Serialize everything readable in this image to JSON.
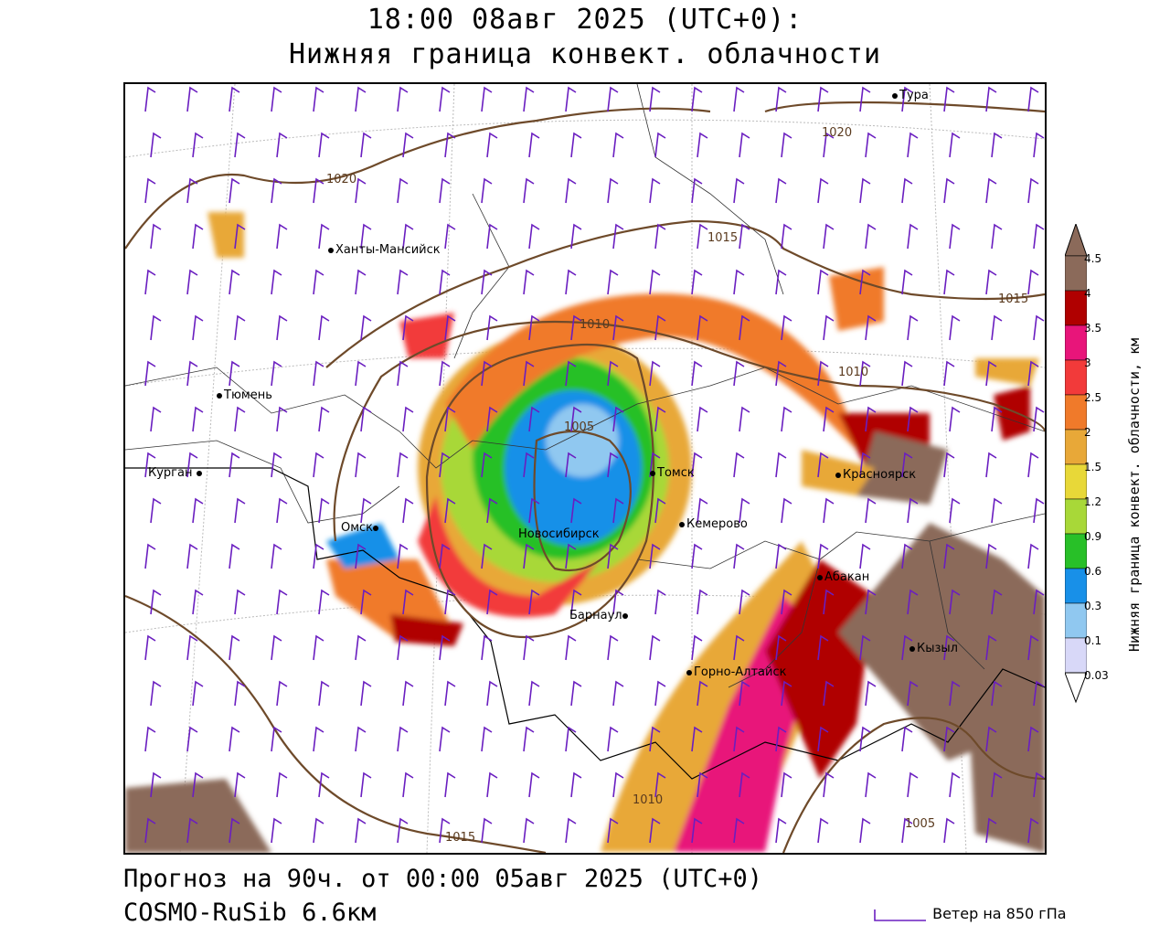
{
  "header": {
    "title_line1": "18:00 08авг 2025 (UTC+0):",
    "title_line2": "Нижняя граница конвект. облачности"
  },
  "footer": {
    "forecast": "Прогноз на 90ч. от 00:00 05авг 2025 (UTC+0)",
    "model": "COSMO-RuSib 6.6км",
    "wind_legend": "Ветер на 850 гПа"
  },
  "colorbar": {
    "title": "Нижняя граница конвект. облачности, км",
    "labels": [
      "4.5",
      "4",
      "3.5",
      "3",
      "2.5",
      "2",
      "1.5",
      "1.2",
      "0.9",
      "0.6",
      "0.3",
      "0.1",
      "0.03"
    ],
    "colors": [
      "#8b6a5a",
      "#b00000",
      "#e8157a",
      "#f23a3a",
      "#f07a2a",
      "#e8a838",
      "#e8d838",
      "#a8d838",
      "#28c028",
      "#1890e8",
      "#90c8f0",
      "#d8d8f8",
      "#ffffff"
    ]
  },
  "cities": [
    {
      "name": "Тура"
    },
    {
      "name": "Ханты-Мансийск"
    },
    {
      "name": "Тюмень"
    },
    {
      "name": "Курган"
    },
    {
      "name": "Омск"
    },
    {
      "name": "Новосибирск"
    },
    {
      "name": "Томск"
    },
    {
      "name": "Кемерово"
    },
    {
      "name": "Красноярск"
    },
    {
      "name": "Абакан"
    },
    {
      "name": "Барнаул"
    },
    {
      "name": "Горно-Алтайск"
    },
    {
      "name": "Кызыл"
    }
  ],
  "isobars": {
    "labels": [
      "1020",
      "1020",
      "1015",
      "1015",
      "1010",
      "1010",
      "1005",
      "1005",
      "1015",
      "1010"
    ]
  }
}
